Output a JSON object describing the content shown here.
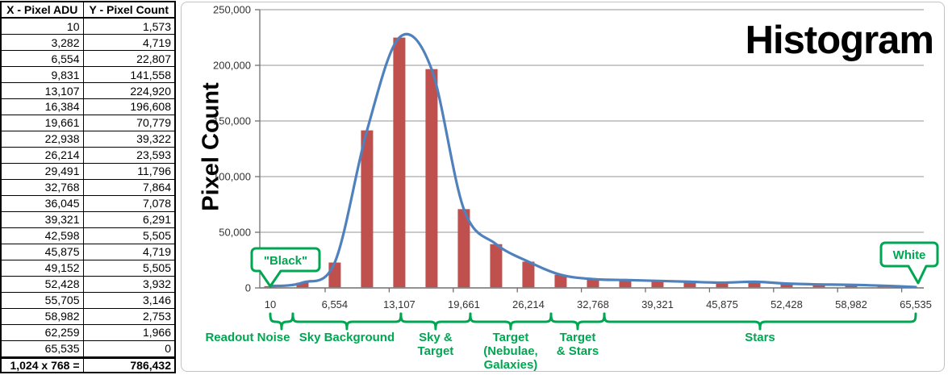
{
  "table": {
    "headers": [
      "X - Pixel ADU",
      "Y - Pixel Count"
    ],
    "rows": [
      [
        "10",
        "1,573"
      ],
      [
        "3,282",
        "4,719"
      ],
      [
        "6,554",
        "22,807"
      ],
      [
        "9,831",
        "141,558"
      ],
      [
        "13,107",
        "224,920"
      ],
      [
        "16,384",
        "196,608"
      ],
      [
        "19,661",
        "70,779"
      ],
      [
        "22,938",
        "39,322"
      ],
      [
        "26,214",
        "23,593"
      ],
      [
        "29,491",
        "11,796"
      ],
      [
        "32,768",
        "7,864"
      ],
      [
        "36,045",
        "7,078"
      ],
      [
        "39,321",
        "6,291"
      ],
      [
        "42,598",
        "5,505"
      ],
      [
        "45,875",
        "4,719"
      ],
      [
        "49,152",
        "5,505"
      ],
      [
        "52,428",
        "3,932"
      ],
      [
        "55,705",
        "3,146"
      ],
      [
        "58,982",
        "2,753"
      ],
      [
        "62,259",
        "1,966"
      ],
      [
        "65,535",
        "0"
      ]
    ],
    "footer": [
      "1,024 x 768 =",
      "786,432"
    ]
  },
  "chart_data": {
    "type": "bar",
    "title": "Histogram",
    "xlabel": "",
    "ylabel": "Pixel Count",
    "x": [
      10,
      3282,
      6554,
      9831,
      13107,
      16384,
      19661,
      22938,
      26214,
      29491,
      32768,
      36045,
      39321,
      42598,
      45875,
      49152,
      52428,
      55705,
      58982,
      62259,
      65535
    ],
    "values": [
      1573,
      4719,
      22807,
      141558,
      224920,
      196608,
      70779,
      39322,
      23593,
      11796,
      7864,
      7078,
      6291,
      5505,
      4719,
      5505,
      3932,
      3146,
      2753,
      1966,
      0
    ],
    "overlay_line": {
      "type": "line",
      "smooth": true,
      "note": "smooth spline through the same x/values"
    },
    "xlim": [
      10,
      65535
    ],
    "ylim": [
      0,
      250000
    ],
    "xticks": [
      10,
      6554,
      13107,
      19661,
      26214,
      32768,
      39321,
      45875,
      52428,
      58982,
      65535
    ],
    "xtick_labels": [
      "10",
      "6,554",
      "13,107",
      "19,661",
      "26,214",
      "32,768",
      "39,321",
      "45,875",
      "52,428",
      "58,982",
      "65,535"
    ],
    "yticks": [
      0,
      50000,
      100000,
      150000,
      200000,
      250000
    ],
    "ytick_labels": [
      "0",
      "50,000",
      "100,000",
      "150,000",
      "200,000",
      "250,000"
    ],
    "grid": "horizontal gridlines on",
    "legend": "none",
    "colors": {
      "bar": "#C0504D",
      "line": "#4F81BD",
      "annotation_green": "#00A651",
      "gridline": "#969696",
      "axis": "#6F6F6F",
      "tick_text": "#333333"
    }
  },
  "annotations": {
    "callouts": [
      {
        "text": "\"Black\"",
        "points_to_x": 10
      },
      {
        "text": "White",
        "points_to_x": 65535
      }
    ],
    "regions": [
      {
        "label": "Readout Noise",
        "from": 10,
        "to": 2300
      },
      {
        "label": "Sky Background",
        "from": 2300,
        "to": 13270
      },
      {
        "label": "Sky &\nTarget",
        "from": 13270,
        "to": 20320
      },
      {
        "label": "Target\n(Nebulae,\nGalaxies)",
        "from": 20320,
        "to": 28510
      },
      {
        "label": "Target\n& Stars",
        "from": 28510,
        "to": 33920
      },
      {
        "label": "Stars",
        "from": 33920,
        "to": 65535
      }
    ]
  }
}
